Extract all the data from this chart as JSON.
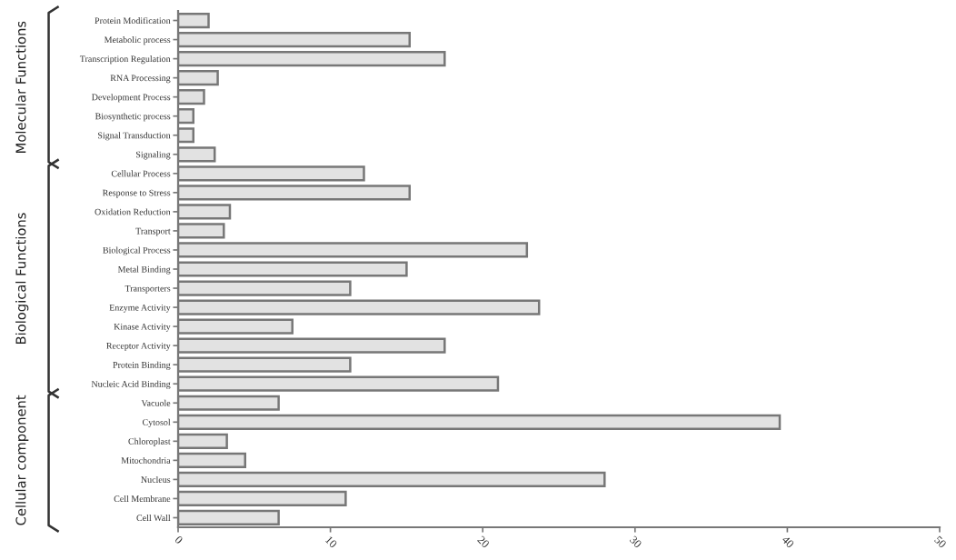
{
  "chart_data": {
    "type": "bar",
    "orientation": "horizontal",
    "categories": [
      "Protein Modification",
      "Metabolic process",
      "Transcription Regulation",
      "RNA Processing",
      "Development Process",
      "Biosynthetic process",
      "Signal Transduction",
      "Signaling",
      "Cellular Process",
      "Response to Stress",
      "Oxidation Reduction",
      "Transport",
      "Biological Process",
      "Metal Binding",
      "Transporters",
      "Enzyme Activity",
      "Kinase Activity",
      "Receptor Activity",
      "Protein Binding",
      "Nucleic Acid Binding",
      "Vacuole",
      "Cytosol",
      "Chloroplast",
      "Mitochondria",
      "Nucleus",
      "Cell Membrane",
      "Cell Wall"
    ],
    "values": [
      2.0,
      15.2,
      17.5,
      2.6,
      1.7,
      1.0,
      1.0,
      2.4,
      12.2,
      15.2,
      3.4,
      3.0,
      22.9,
      15.0,
      11.3,
      23.7,
      7.5,
      17.5,
      11.3,
      21.0,
      6.6,
      39.5,
      3.2,
      4.4,
      28.0,
      11.0,
      6.6
    ],
    "color": "#e2e2e2",
    "xlim": [
      0,
      50
    ],
    "xticks": [
      0,
      10,
      20,
      30,
      40,
      50
    ],
    "grid": false,
    "annotations": [
      "Molecular Functions",
      "Biological Functions",
      "Cellular component"
    ]
  }
}
